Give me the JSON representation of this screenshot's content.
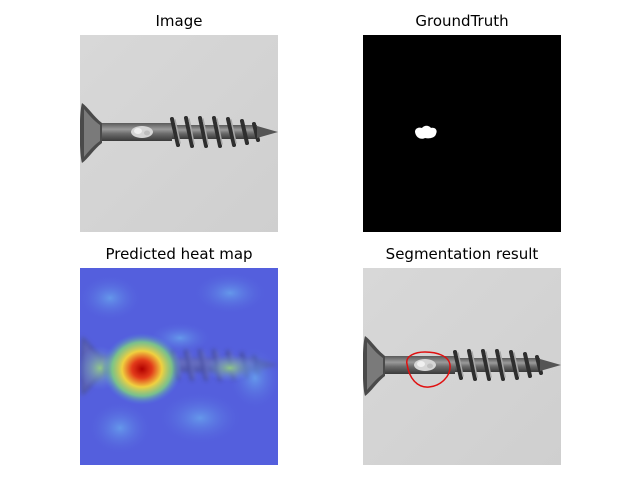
{
  "figure": {
    "panels": [
      {
        "title": "Image"
      },
      {
        "title": "GroundTruth"
      },
      {
        "title": "Predicted heat map"
      },
      {
        "title": "Segmentation result"
      }
    ]
  }
}
